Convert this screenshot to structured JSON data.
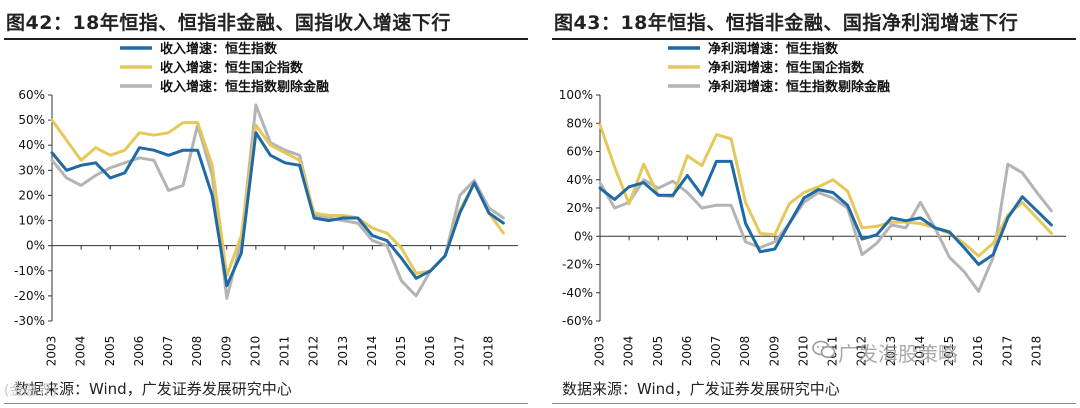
{
  "colors": {
    "blue": "#1f6aa5",
    "yellow": "#e6c85a",
    "gray": "#b4b4b4"
  },
  "watermark": "广发海股策略",
  "watermark_left": "(金融界)",
  "chart_data": [
    {
      "type": "line",
      "title": "图42：18年恒指、恒指非金融、国指收入增速下行",
      "source": "数据来源：Wind，广发证券发展研究中心",
      "ylim": [
        -0.3,
        0.6
      ],
      "yticks": [
        -0.3,
        -0.2,
        -0.1,
        0.0,
        0.1,
        0.2,
        0.3,
        0.4,
        0.5,
        0.6
      ],
      "ytick_labels": [
        "-30%",
        "-20%",
        "-10%",
        "0%",
        "10%",
        "20%",
        "30%",
        "40%",
        "50%",
        "60%"
      ],
      "xlim": [
        2003,
        2019
      ],
      "xtick_labels": [
        "2003",
        "2004",
        "2005",
        "2006",
        "2007",
        "2008",
        "2009",
        "2010",
        "2011",
        "2012",
        "2013",
        "2014",
        "2015",
        "2016",
        "2017",
        "2018"
      ],
      "series": [
        {
          "name": "收入增速：恒生指数",
          "color": "#1f6aa5",
          "x": [
            2003.0,
            2003.5,
            2004.0,
            2004.5,
            2005.0,
            2005.5,
            2006.0,
            2006.5,
            2007.0,
            2007.5,
            2008.0,
            2008.5,
            2009.0,
            2009.5,
            2010.0,
            2010.5,
            2011.0,
            2011.5,
            2012.0,
            2012.5,
            2013.0,
            2013.5,
            2014.0,
            2014.5,
            2015.0,
            2015.5,
            2016.0,
            2016.5,
            2017.0,
            2017.5,
            2018.0,
            2018.5
          ],
          "y": [
            0.37,
            0.3,
            0.32,
            0.33,
            0.27,
            0.29,
            0.39,
            0.38,
            0.36,
            0.38,
            0.38,
            0.2,
            -0.16,
            -0.03,
            0.45,
            0.36,
            0.33,
            0.32,
            0.11,
            0.1,
            0.11,
            0.11,
            0.04,
            0.02,
            -0.05,
            -0.13,
            -0.1,
            -0.04,
            0.13,
            0.25,
            0.13,
            0.09
          ]
        },
        {
          "name": "收入增速：恒生国企指数",
          "color": "#e6c85a",
          "x": [
            2003.0,
            2003.5,
            2004.0,
            2004.5,
            2005.0,
            2005.5,
            2006.0,
            2006.5,
            2007.0,
            2007.5,
            2008.0,
            2008.5,
            2009.0,
            2009.5,
            2010.0,
            2010.5,
            2011.0,
            2011.5,
            2012.0,
            2012.5,
            2013.0,
            2013.5,
            2014.0,
            2014.5,
            2015.0,
            2015.5,
            2016.0,
            2016.5,
            2017.0,
            2017.5,
            2018.0,
            2018.5
          ],
          "y": [
            0.5,
            0.42,
            0.34,
            0.39,
            0.36,
            0.38,
            0.45,
            0.44,
            0.45,
            0.49,
            0.49,
            0.32,
            -0.12,
            0.04,
            0.48,
            0.4,
            0.37,
            0.34,
            0.13,
            0.12,
            0.12,
            0.11,
            0.07,
            0.05,
            -0.01,
            -0.11,
            -0.1,
            -0.04,
            0.14,
            0.25,
            0.13,
            0.05
          ]
        },
        {
          "name": "收入增速：恒生指数剔除金融",
          "color": "#b4b4b4",
          "x": [
            2003.0,
            2003.5,
            2004.0,
            2004.5,
            2005.0,
            2005.5,
            2006.0,
            2006.5,
            2007.0,
            2007.5,
            2008.0,
            2008.5,
            2009.0,
            2009.5,
            2010.0,
            2010.5,
            2011.0,
            2011.5,
            2012.0,
            2012.5,
            2013.0,
            2013.5,
            2014.0,
            2014.5,
            2015.0,
            2015.5,
            2016.0,
            2016.5,
            2017.0,
            2017.5,
            2018.0,
            2018.5
          ],
          "y": [
            0.34,
            0.27,
            0.24,
            0.28,
            0.31,
            0.33,
            0.35,
            0.34,
            0.22,
            0.24,
            0.48,
            0.28,
            -0.21,
            0.02,
            0.56,
            0.41,
            0.38,
            0.36,
            0.12,
            0.11,
            0.1,
            0.09,
            0.02,
            0.0,
            -0.14,
            -0.2,
            -0.1,
            -0.04,
            0.2,
            0.26,
            0.15,
            0.11
          ]
        }
      ]
    },
    {
      "type": "line",
      "title": "图43：18年恒指、恒指非金融、国指净利润增速下行",
      "source": "数据来源：Wind，广发证券发展研究中心",
      "ylim": [
        -0.6,
        1.0
      ],
      "yticks": [
        -0.6,
        -0.4,
        -0.2,
        0.0,
        0.2,
        0.4,
        0.6,
        0.8,
        1.0
      ],
      "ytick_labels": [
        "-60%",
        "-40%",
        "-20%",
        "0%",
        "20%",
        "40%",
        "60%",
        "80%",
        "100%"
      ],
      "xlim": [
        2003,
        2019
      ],
      "xtick_labels": [
        "2003",
        "2004",
        "2005",
        "2006",
        "2007",
        "2008",
        "2009",
        "2010",
        "2011",
        "2012",
        "2013",
        "2014",
        "2015",
        "2016",
        "2017",
        "2018"
      ],
      "series": [
        {
          "name": "净利润增速：恒生指数",
          "color": "#1f6aa5",
          "x": [
            2003.0,
            2003.5,
            2004.0,
            2004.5,
            2005.0,
            2005.5,
            2006.0,
            2006.5,
            2007.0,
            2007.5,
            2008.0,
            2008.5,
            2009.0,
            2009.5,
            2010.0,
            2010.5,
            2011.0,
            2011.5,
            2012.0,
            2012.5,
            2013.0,
            2013.5,
            2014.0,
            2014.5,
            2015.0,
            2015.5,
            2016.0,
            2016.5,
            2017.0,
            2017.5,
            2018.0,
            2018.5
          ],
          "y": [
            0.34,
            0.26,
            0.35,
            0.38,
            0.29,
            0.29,
            0.43,
            0.29,
            0.53,
            0.53,
            0.09,
            -0.11,
            -0.09,
            0.09,
            0.27,
            0.33,
            0.31,
            0.22,
            -0.02,
            0.01,
            0.13,
            0.11,
            0.13,
            0.06,
            0.03,
            -0.08,
            -0.2,
            -0.13,
            0.13,
            0.28,
            0.18,
            0.08
          ]
        },
        {
          "name": "净利润增速：恒生国企指数",
          "color": "#e6c85a",
          "x": [
            2003.0,
            2003.5,
            2004.0,
            2004.5,
            2005.0,
            2005.5,
            2006.0,
            2006.5,
            2007.0,
            2007.5,
            2008.0,
            2008.5,
            2009.0,
            2009.5,
            2010.0,
            2010.5,
            2011.0,
            2011.5,
            2012.0,
            2012.5,
            2013.0,
            2013.5,
            2014.0,
            2014.5,
            2015.0,
            2015.5,
            2016.0,
            2016.5,
            2017.0,
            2017.5,
            2018.0,
            2018.5
          ],
          "y": [
            0.79,
            0.49,
            0.23,
            0.51,
            0.29,
            0.28,
            0.57,
            0.5,
            0.72,
            0.69,
            0.24,
            0.02,
            0.01,
            0.23,
            0.31,
            0.35,
            0.4,
            0.32,
            0.06,
            0.07,
            0.1,
            0.1,
            0.09,
            0.06,
            0.02,
            -0.05,
            -0.14,
            -0.05,
            0.15,
            0.24,
            0.13,
            0.02
          ]
        },
        {
          "name": "净利润增速：恒生指数剔除金融",
          "color": "#b4b4b4",
          "x": [
            2003.0,
            2003.5,
            2004.0,
            2004.5,
            2005.0,
            2005.5,
            2006.0,
            2006.5,
            2007.0,
            2007.5,
            2008.0,
            2008.5,
            2009.0,
            2009.5,
            2010.0,
            2010.5,
            2011.0,
            2011.5,
            2012.0,
            2012.5,
            2013.0,
            2013.5,
            2014.0,
            2014.5,
            2015.0,
            2015.5,
            2016.0,
            2016.5,
            2017.0,
            2017.5,
            2018.0,
            2018.5
          ],
          "y": [
            0.38,
            0.2,
            0.24,
            0.4,
            0.34,
            0.39,
            0.31,
            0.2,
            0.22,
            0.22,
            -0.04,
            -0.08,
            -0.04,
            0.09,
            0.24,
            0.31,
            0.27,
            0.2,
            -0.13,
            -0.05,
            0.08,
            0.06,
            0.24,
            0.06,
            -0.15,
            -0.25,
            -0.39,
            -0.15,
            0.51,
            0.45,
            0.31,
            0.18
          ]
        }
      ]
    }
  ]
}
